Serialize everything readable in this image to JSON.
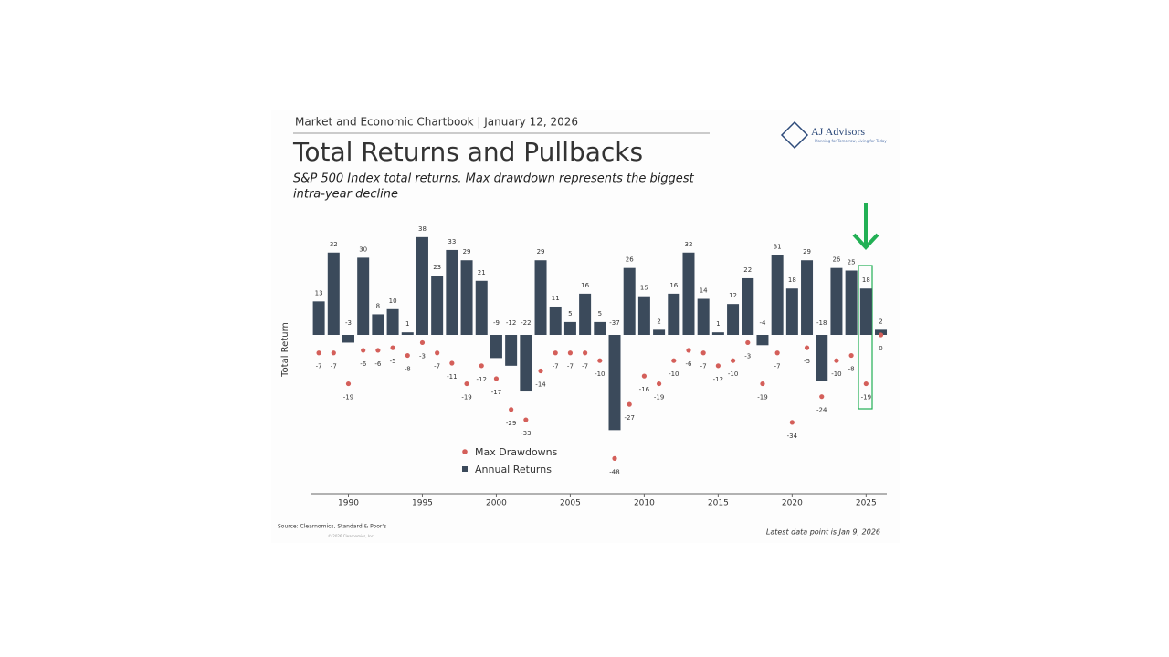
{
  "header": "Market and Economic Chartbook | January 12, 2026",
  "logo": {
    "name": "AJ Advisors",
    "tagline": "Planning for Tomorrow, Living for Today"
  },
  "chart_data": {
    "type": "bar",
    "title": "Total Returns and Pullbacks",
    "subtitle": [
      "S&P 500 Index total returns. Max drawdown represents the biggest",
      "intra-year decline"
    ],
    "y_label": "Total Return",
    "x": [
      1988,
      1989,
      1990,
      1991,
      1992,
      1993,
      1994,
      1995,
      1996,
      1997,
      1998,
      1999,
      2000,
      2001,
      2002,
      2003,
      2004,
      2005,
      2006,
      2007,
      2008,
      2009,
      2010,
      2011,
      2012,
      2013,
      2014,
      2015,
      2016,
      2017,
      2018,
      2019,
      2020,
      2021,
      2022,
      2023,
      2024,
      2025,
      2026
    ],
    "xlim": [
      1987.5,
      2026.4
    ],
    "xticks": [
      1990,
      1995,
      2000,
      2005,
      2010,
      2015,
      2020,
      2025
    ],
    "series": [
      {
        "name": "Annual Returns",
        "color": "#3b4a5b",
        "values": [
          13,
          32,
          -3,
          30,
          8,
          10,
          1,
          38,
          23,
          33,
          29,
          21,
          -9,
          -12,
          -22,
          29,
          11,
          5,
          16,
          5,
          -37,
          26,
          15,
          2,
          16,
          32,
          14,
          1,
          12,
          22,
          -4,
          31,
          18,
          29,
          -18,
          26,
          25,
          18,
          2
        ]
      },
      {
        "name": "Max Drawdowns",
        "color": "#d45f5a",
        "values": [
          -7,
          -7,
          -19,
          -6,
          -6,
          -5,
          -8,
          -3,
          -7,
          -11,
          -19,
          -12,
          -17,
          -29,
          -33,
          -14,
          -7,
          -7,
          -7,
          -10,
          -48,
          -27,
          -16,
          -19,
          -10,
          -6,
          -7,
          -12,
          -10,
          -3,
          -19,
          -7,
          -34,
          -5,
          -24,
          -10,
          -8,
          -19,
          0
        ]
      }
    ],
    "source": "Source: Clearnomics, Standard & Poor's",
    "copyright": "© 2026 Clearnomics, Inc.",
    "note": "Latest data point is Jan 9, 2026"
  }
}
